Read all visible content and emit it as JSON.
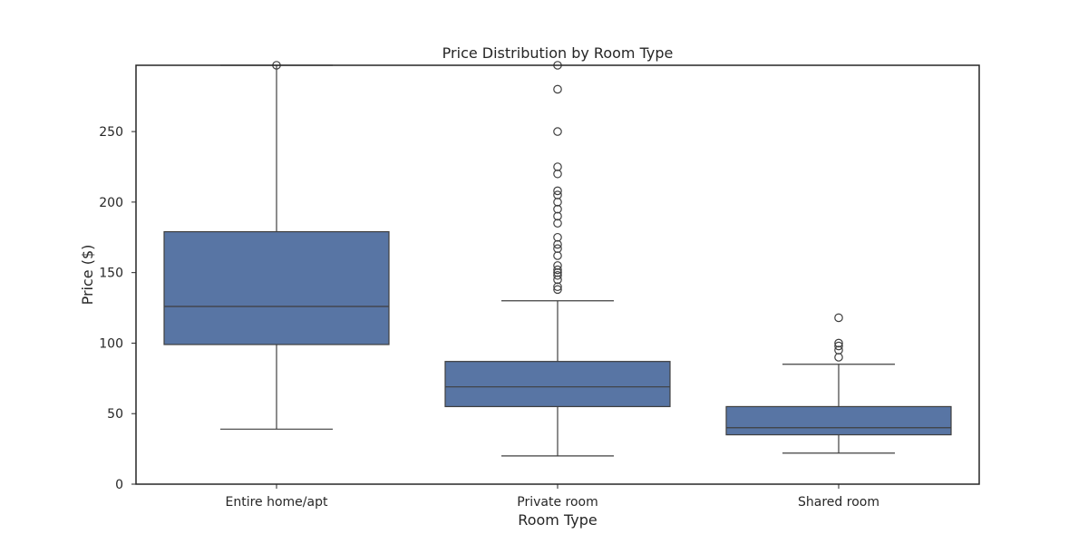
{
  "chart_data": {
    "type": "box",
    "title": "Price Distribution by Room Type",
    "xlabel": "Room Type",
    "ylabel": "Price ($)",
    "ylim": [
      0,
      297
    ],
    "yticks": [
      0,
      50,
      100,
      150,
      200,
      250
    ],
    "grid": false,
    "colors": {
      "box_fill": "#5875a4",
      "line": "#3f3f3f",
      "frame": "#262626"
    },
    "categories": [
      "Entire home/apt",
      "Private room",
      "Shared room"
    ],
    "boxes": [
      {
        "category": "Entire home/apt",
        "whisker_low": 39,
        "q1": 99,
        "median": 126,
        "q3": 179,
        "whisker_high": 297,
        "outliers": [
          297
        ]
      },
      {
        "category": "Private room",
        "whisker_low": 20,
        "q1": 55,
        "median": 69,
        "q3": 87,
        "whisker_high": 130,
        "outliers": [
          138,
          140,
          145,
          148,
          150,
          152,
          155,
          162,
          167,
          170,
          175,
          185,
          190,
          195,
          200,
          205,
          208,
          220,
          225,
          250,
          280,
          297
        ]
      },
      {
        "category": "Shared room",
        "whisker_low": 22,
        "q1": 35,
        "median": 40,
        "q3": 55,
        "whisker_high": 85,
        "outliers": [
          90,
          95,
          98,
          100,
          118
        ]
      }
    ]
  }
}
